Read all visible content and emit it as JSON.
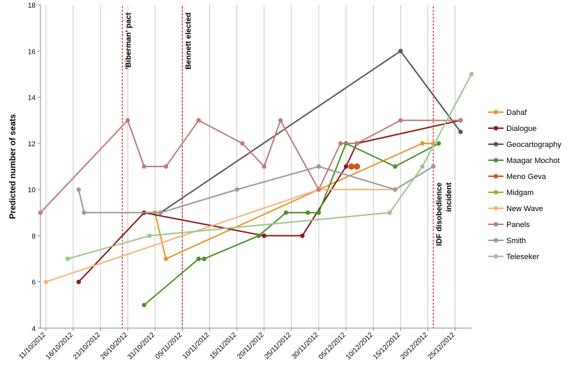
{
  "chart_data": {
    "type": "line",
    "ylabel": "Predicted number of seats",
    "xlabel": "",
    "ylim": [
      4,
      18
    ],
    "yticks": [
      4,
      6,
      8,
      10,
      12,
      14,
      16,
      18
    ],
    "xlim": [
      "2012-10-10",
      "2012-12-28"
    ],
    "x_tick_labels": [
      "11/10/2012",
      "16/10/2012",
      "21/10/2012",
      "26/10/2012",
      "31/10/2012",
      "05/11/2012",
      "10/11/2012",
      "15/11/2012",
      "20/11/2012",
      "25/11/2012",
      "30/11/2012",
      "05/12/2012",
      "10/12/2012",
      "15/12/2012",
      "20/12/2012",
      "25/12/2012"
    ],
    "grid": "vertical gridlines",
    "legend_position": "right",
    "events": [
      {
        "label": "'Biberman' pact",
        "date": "2012-10-25"
      },
      {
        "label": "Bennett elected",
        "date": "2012-11-05"
      },
      {
        "label": "IDF disobedience incident",
        "date": "2012-12-21"
      }
    ],
    "series": [
      {
        "name": "Dahaf",
        "color": "#E8962E",
        "points": [
          [
            "2012-10-31",
            9
          ],
          [
            "2012-11-02",
            7
          ],
          [
            "2012-11-30",
            10
          ],
          [
            "2012-12-19",
            12
          ],
          [
            "2012-12-21",
            12
          ]
        ]
      },
      {
        "name": "Dialogue",
        "color": "#8B1A1A",
        "points": [
          [
            "2012-10-17",
            6
          ],
          [
            "2012-10-29",
            9
          ],
          [
            "2012-11-20",
            8
          ],
          [
            "2012-11-27",
            8
          ],
          [
            "2012-12-05",
            11
          ],
          [
            "2012-12-07",
            12
          ],
          [
            "2012-12-26",
            13
          ]
        ]
      },
      {
        "name": "Geocartography",
        "color": "#5A5550",
        "points": [
          [
            "2012-11-01",
            9
          ],
          [
            "2012-12-15",
            16
          ],
          [
            "2012-12-26",
            12.5
          ]
        ]
      },
      {
        "name": "Maagar Mochot",
        "color": "#4E8F2E",
        "points": [
          [
            "2012-10-29",
            5
          ],
          [
            "2012-11-08",
            7
          ],
          [
            "2012-11-09",
            7
          ],
          [
            "2012-11-19",
            8
          ],
          [
            "2012-11-24",
            9
          ],
          [
            "2012-11-28",
            9
          ],
          [
            "2012-11-30",
            9
          ],
          [
            "2012-12-05",
            12
          ],
          [
            "2012-12-14",
            11
          ],
          [
            "2012-12-22",
            12
          ]
        ]
      },
      {
        "name": "Meno Geva",
        "color": "#D0541A",
        "points": [
          [
            "2012-12-06",
            11
          ],
          [
            "2012-12-07",
            11
          ]
        ]
      },
      {
        "name": "Midgam",
        "color": "#9BB42A",
        "points": []
      },
      {
        "name": "New Wave",
        "color": "#F7B27A",
        "points": [
          [
            "2012-10-11",
            6
          ],
          [
            "2012-11-30",
            10
          ],
          [
            "2012-12-14",
            10
          ]
        ]
      },
      {
        "name": "Panels",
        "color": "#C07B7B",
        "points": [
          [
            "2012-10-10",
            9
          ],
          [
            "2012-10-26",
            13
          ],
          [
            "2012-10-29",
            11
          ],
          [
            "2012-11-02",
            11
          ],
          [
            "2012-11-08",
            13
          ],
          [
            "2012-11-16",
            12
          ],
          [
            "2012-11-20",
            11
          ],
          [
            "2012-11-23",
            13
          ],
          [
            "2012-11-30",
            10
          ],
          [
            "2012-12-04",
            12
          ],
          [
            "2012-12-07",
            12
          ],
          [
            "2012-12-15",
            13
          ],
          [
            "2012-12-26",
            13
          ]
        ]
      },
      {
        "name": "Smith",
        "color": "#9A9A9A",
        "points": [
          [
            "2012-10-17",
            10
          ],
          [
            "2012-10-18",
            9
          ],
          [
            "2012-11-01",
            9
          ],
          [
            "2012-11-15",
            10
          ],
          [
            "2012-11-30",
            11
          ],
          [
            "2012-12-14",
            10
          ],
          [
            "2012-12-21",
            11
          ]
        ]
      },
      {
        "name": "Teleseker",
        "color": "#9CC68A",
        "points": [
          [
            "2012-10-15",
            7
          ],
          [
            "2012-10-30",
            8
          ],
          [
            "2012-12-13",
            9
          ],
          [
            "2012-12-19",
            11
          ],
          [
            "2012-12-28",
            15
          ]
        ]
      }
    ]
  }
}
